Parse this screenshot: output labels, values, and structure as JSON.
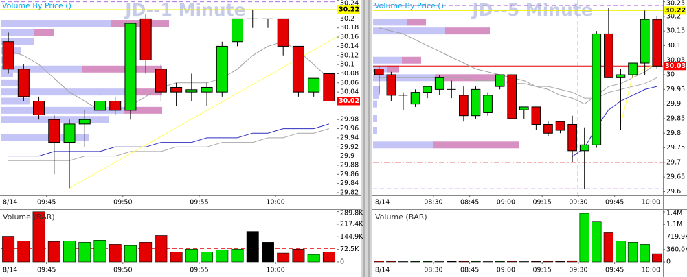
{
  "chart_data": [
    {
      "type": "candlestick",
      "title": "JD--1 Minute",
      "vbp_title": "Volume By Price ()",
      "date_label": "8/14",
      "xlim": [
        -0.5,
        21.5
      ],
      "ylim": [
        29.814,
        30.241
      ],
      "xticks": [
        {
          "value": 2.5,
          "label": "09:45"
        },
        {
          "value": 7.5,
          "label": "09:50"
        },
        {
          "value": 12.5,
          "label": "09:55"
        },
        {
          "value": 17.5,
          "label": "10:00"
        }
      ],
      "yticks": [
        29.82,
        29.84,
        29.86,
        29.88,
        29.9,
        29.92,
        29.94,
        29.96,
        29.98,
        {
          "value": 30.02,
          "label": "30."
        },
        30.04,
        30.06,
        30.08,
        30.1,
        30.12,
        30.14,
        30.16,
        30.18,
        30.2,
        30.22,
        30.24
      ],
      "up_color": "#00e400",
      "down_color": "#e40000",
      "flat_color": "#000000",
      "open": [
        30.15,
        30.09,
        30.02,
        29.98,
        29.93,
        29.97,
        30.0,
        30.02,
        30.0,
        30.2,
        30.09,
        30.05,
        30.04,
        30.04,
        30.04,
        30.15,
        30.2,
        30.2,
        30.2,
        30.14,
        30.04,
        30.08
      ],
      "high": [
        30.17,
        30.1,
        30.03,
        29.99,
        29.98,
        30.0,
        30.04,
        30.03,
        30.19,
        30.21,
        30.1,
        30.06,
        30.08,
        30.06,
        30.15,
        30.2,
        30.22,
        30.2,
        30.2,
        30.14,
        30.07,
        30.08
      ],
      "low": [
        30.08,
        30.02,
        29.98,
        29.86,
        29.83,
        29.92,
        29.98,
        29.99,
        29.98,
        30.08,
        30.02,
        30.01,
        30.02,
        30.01,
        30.03,
        30.14,
        30.18,
        30.18,
        30.12,
        30.03,
        30.03,
        30.02
      ],
      "close": [
        30.09,
        30.03,
        29.99,
        29.93,
        29.97,
        29.98,
        30.02,
        30.0,
        30.19,
        30.11,
        30.04,
        30.04,
        30.045,
        30.05,
        30.14,
        30.2,
        30.2,
        30.2,
        30.14,
        30.04,
        30.07,
        30.02
      ],
      "lines": [
        {
          "color": "#a0a0a0",
          "values": [
            30.13,
            30.12,
            30.1,
            30.07,
            30.04,
            30.02,
            30.0,
            30.0,
            30.01,
            30.03,
            30.05,
            30.06,
            30.06,
            30.06,
            30.07,
            30.09,
            30.12,
            30.14,
            30.15,
            30.13,
            30.1,
            30.07
          ]
        },
        {
          "color": "#a8a8a8",
          "values": [
            29.89,
            29.89,
            29.89,
            29.89,
            29.89,
            29.9,
            29.9,
            29.9,
            29.91,
            29.91,
            29.91,
            29.92,
            29.92,
            29.92,
            29.93,
            29.93,
            29.93,
            29.94,
            29.94,
            29.95,
            29.95,
            29.96
          ]
        },
        {
          "color": "#3030c0",
          "values": [
            29.9,
            29.9,
            29.9,
            29.91,
            29.91,
            29.91,
            29.91,
            29.92,
            29.92,
            29.92,
            29.93,
            29.93,
            29.93,
            29.94,
            29.94,
            29.94,
            29.95,
            29.95,
            29.96,
            29.96,
            29.96,
            29.97
          ]
        }
      ],
      "trendlines": [
        {
          "color": "#ffff60",
          "x": [
            4,
            21.5
          ],
          "values": [
            29.83,
            30.16
          ]
        }
      ],
      "vbp": {
        "buy_color": "#c4c4f6",
        "sell_color": "#d690c2",
        "levels": [
          30.19,
          30.17,
          30.15,
          30.13,
          30.11,
          30.09,
          30.08,
          30.06,
          30.04,
          30.02,
          30.0,
          29.98,
          29.94
        ],
        "buy": [
          160,
          48,
          48,
          30,
          20,
          118,
          18,
          30,
          190,
          42,
          180,
          157,
          128
        ],
        "sell": [
          85,
          29,
          0,
          0,
          0,
          117,
          0,
          0,
          45,
          0,
          55,
          0,
          0
        ]
      },
      "price_lines": [
        {
          "value": 30.237,
          "color": "#b070e0",
          "style": "dash"
        },
        {
          "value": 30.22,
          "color": "#f0f000",
          "style": "solid",
          "tag": true,
          "tag_fill": "#ffff00",
          "tag_text": "#000000"
        },
        {
          "value": 30.02,
          "color": "#e00000",
          "style": "solid",
          "tag": true,
          "tag_fill": "#ff0000",
          "tag_text": "#ffffff"
        }
      ]
    },
    {
      "type": "bar",
      "title": "Volume (BAR)",
      "date_label": "8/14",
      "xlim": [
        -0.5,
        21.5
      ],
      "ylim": [
        0,
        300000
      ],
      "xticks": [
        {
          "value": 2.5,
          "label": "09:45"
        },
        {
          "value": 7.5,
          "label": "09:50"
        },
        {
          "value": 12.5,
          "label": "09:55"
        },
        {
          "value": 17.5,
          "label": "10:00"
        }
      ],
      "yticks": [
        0,
        {
          "value": 72450,
          "label": "72.5K"
        },
        {
          "value": 144900,
          "label": "144.9K"
        },
        {
          "value": 217350,
          "label": "217.4K"
        },
        {
          "value": 289800,
          "label": "289.8K"
        }
      ],
      "values": [
        148000,
        121000,
        289000,
        117000,
        121000,
        113000,
        125000,
        101000,
        94000,
        113000,
        152000,
        58000,
        74000,
        58000,
        70000,
        74000,
        175000,
        113000,
        51000,
        74000,
        43000,
        58000
      ],
      "colors": [
        "#e40000",
        "#e40000",
        "#e40000",
        "#e40000",
        "#00e400",
        "#00e400",
        "#00e400",
        "#e40000",
        "#00e400",
        "#e40000",
        "#e40000",
        "#e40000",
        "#00e400",
        "#00e400",
        "#00e400",
        "#00e400",
        "#000000",
        "#000000",
        "#e40000",
        "#e40000",
        "#00e400",
        "#e40000"
      ],
      "price_lines": [
        {
          "value": 78000,
          "color": "#e00000",
          "style": "dash"
        }
      ]
    },
    {
      "type": "candlestick",
      "title": "JD--5 Minute",
      "vbp_title": "Volume By Price ()",
      "date_label": "8/14",
      "xlim": [
        -0.5,
        23.5
      ],
      "ylim": [
        29.587,
        30.256
      ],
      "xticks": [
        {
          "value": 4.5,
          "label": "08:30"
        },
        {
          "value": 7.5,
          "label": "08:45"
        },
        {
          "value": 10.5,
          "label": "09:00"
        },
        {
          "value": 13.5,
          "label": "09:15"
        },
        {
          "value": 16.5,
          "label": "09:30"
        },
        {
          "value": 19.5,
          "label": "09:45"
        },
        {
          "value": 22.5,
          "label": "10:00"
        }
      ],
      "yticks": [
        29.6,
        29.65,
        29.7,
        29.75,
        29.8,
        29.85,
        29.9,
        29.95,
        30,
        30.05,
        30.1,
        30.15,
        30.2,
        30.25
      ],
      "up_color": "#00e400",
      "down_color": "#e40000",
      "flat_color": "#000000",
      "open": [
        30.02,
        30.0,
        29.93,
        29.9,
        29.94,
        29.95,
        29.95,
        29.93,
        29.86,
        29.87,
        29.96,
        30.0,
        29.88,
        29.89,
        29.83,
        29.84,
        29.83,
        29.74,
        29.76,
        30.14,
        29.99,
        30.0,
        30.04,
        30.19
      ],
      "high": [
        30.03,
        30.01,
        29.94,
        29.95,
        29.96,
        30.0,
        29.98,
        29.96,
        29.96,
        29.94,
        30.0,
        30.0,
        29.89,
        29.89,
        29.84,
        29.84,
        29.86,
        29.82,
        30.15,
        30.23,
        30.02,
        30.04,
        30.22,
        30.2
      ],
      "low": [
        29.93,
        29.91,
        29.88,
        29.89,
        29.92,
        29.93,
        29.92,
        29.84,
        29.85,
        29.86,
        29.95,
        29.85,
        29.85,
        29.81,
        29.79,
        29.8,
        29.7,
        29.61,
        29.75,
        29.99,
        29.81,
        29.99,
        30.0,
        30.02
      ],
      "close": [
        30.0,
        29.93,
        29.93,
        29.94,
        29.96,
        29.99,
        29.95,
        29.86,
        29.95,
        29.93,
        30.0,
        29.85,
        29.89,
        29.83,
        29.8,
        29.81,
        29.74,
        29.76,
        30.14,
        29.99,
        30.0,
        30.04,
        30.19,
        30.03
      ],
      "lines": [
        {
          "color": "#a0a0a0",
          "values": [
            30.16,
            30.15,
            30.14,
            30.12,
            30.1,
            30.08,
            30.06,
            30.04,
            30.02,
            30.01,
            30.0,
            29.99,
            29.98,
            29.96,
            29.95,
            29.93,
            29.92,
            29.9,
            29.93,
            29.96,
            29.97,
            29.99,
            30.01,
            30.04
          ]
        },
        {
          "color": "#a8a8a8",
          "values": [
            29.99,
            29.99,
            29.99,
            29.99,
            29.99,
            29.99,
            29.99,
            29.99,
            29.98,
            29.98,
            29.98,
            29.97,
            29.97,
            29.96,
            29.96,
            29.95,
            29.94,
            29.92,
            29.92,
            29.94,
            29.95,
            29.96,
            29.97,
            29.99
          ]
        },
        {
          "color": "#3030c0",
          "values": [
            null,
            null,
            null,
            null,
            null,
            null,
            null,
            null,
            null,
            null,
            null,
            null,
            null,
            null,
            null,
            null,
            29.72,
            29.75,
            29.82,
            29.88,
            29.91,
            29.93,
            29.95,
            29.96
          ]
        }
      ],
      "trendlines": [
        {
          "color": "#ffff60",
          "x": [
            20,
            21,
            23
          ],
          "values": [
            29.83,
            30.0,
            30.04
          ]
        }
      ],
      "vbp": {
        "buy_color": "#c4c4f6",
        "sell_color": "#d690c2",
        "levels": [
          30.18,
          30.15,
          30.05,
          30.02,
          29.99,
          29.95,
          29.93,
          29.9,
          29.85,
          29.81,
          29.76
        ],
        "buy": [
          50,
          105,
          42,
          20,
          90,
          10,
          8,
          6,
          6,
          6,
          88
        ],
        "sell": [
          27,
          65,
          28,
          18,
          95,
          0,
          0,
          0,
          0,
          0,
          125
        ]
      },
      "vlines": [
        {
          "value": 16.45,
          "color": "#80c8e0",
          "style": "dash"
        }
      ],
      "price_lines": [
        {
          "value": 30.237,
          "color": "#b070e0",
          "style": "dash"
        },
        {
          "value": 29.7,
          "color": "#e04040",
          "style": "dashdot"
        },
        {
          "value": 29.61,
          "color": "#b070e0",
          "style": "dash"
        },
        {
          "value": 30.22,
          "color": "#f0f000",
          "style": "solid",
          "tag": true,
          "tag_fill": "#ffff00",
          "tag_text": "#000000"
        },
        {
          "value": 30.03,
          "color": "#e00000",
          "style": "solid",
          "tag": true,
          "tag_fill": "#ff0000",
          "tag_text": "#ffffff"
        }
      ]
    },
    {
      "type": "bar",
      "title": "Volume (BAR)",
      "date_label": "8/14",
      "xlim": [
        -0.5,
        23.5
      ],
      "ylim": [
        0,
        1500000
      ],
      "xticks": [
        {
          "value": 4.5,
          "label": "08:30"
        },
        {
          "value": 7.5,
          "label": "08:45"
        },
        {
          "value": 10.5,
          "label": "09:00"
        },
        {
          "value": 13.5,
          "label": "09:15"
        },
        {
          "value": 16.5,
          "label": "09:30"
        },
        {
          "value": 19.5,
          "label": "09:45"
        },
        {
          "value": 22.5,
          "label": "10:00"
        }
      ],
      "yticks": [
        0,
        {
          "value": 360000,
          "label": "360.0K"
        },
        {
          "value": 719900,
          "label": "719.9K"
        },
        {
          "value": 1080000,
          "label": "1.1M"
        },
        {
          "value": 1440000,
          "label": "1.4M"
        }
      ],
      "values": [
        30000,
        20000,
        10000,
        15000,
        15000,
        10000,
        20000,
        20000,
        15000,
        10000,
        15000,
        20000,
        10000,
        15000,
        20000,
        15000,
        35000,
        1400000,
        1150000,
        840000,
        600000,
        565000,
        505000,
        235000
      ],
      "colors": [
        "#e40000",
        "#e40000",
        "#000000",
        "#00e400",
        "#00e400",
        "#00e400",
        "#000000",
        "#e40000",
        "#00e400",
        "#00e400",
        "#00e400",
        "#e40000",
        "#00e400",
        "#e40000",
        "#e40000",
        "#e40000",
        "#e40000",
        "#00e400",
        "#00e400",
        "#e40000",
        "#00e400",
        "#00e400",
        "#00e400",
        "#e40000"
      ]
    }
  ]
}
